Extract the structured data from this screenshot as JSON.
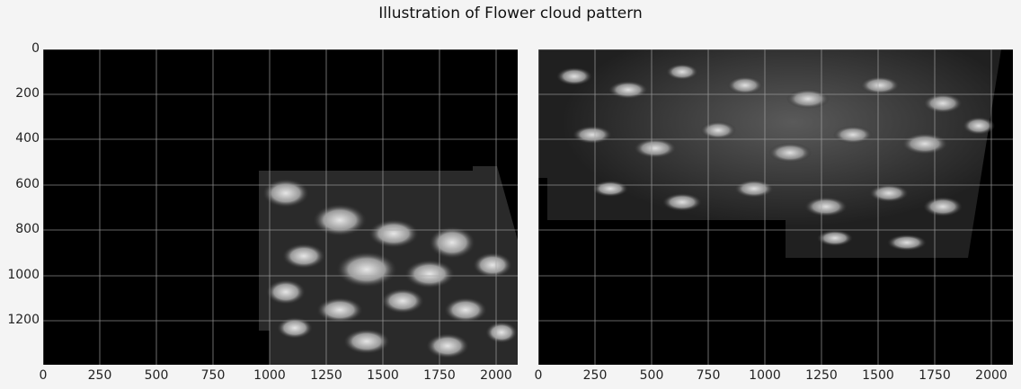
{
  "title": "Illustration of Flower cloud pattern",
  "images": [
    {
      "yticks": [
        "0",
        "200",
        "400",
        "600",
        "800",
        "1000",
        "1200"
      ],
      "xticks": [
        "0",
        "250",
        "500",
        "750",
        "1000",
        "1250",
        "1500",
        "1750",
        "2000"
      ]
    },
    {
      "xticks": [
        "0",
        "250",
        "500",
        "750",
        "1000",
        "1250",
        "1500",
        "1750",
        "2000"
      ]
    }
  ]
}
